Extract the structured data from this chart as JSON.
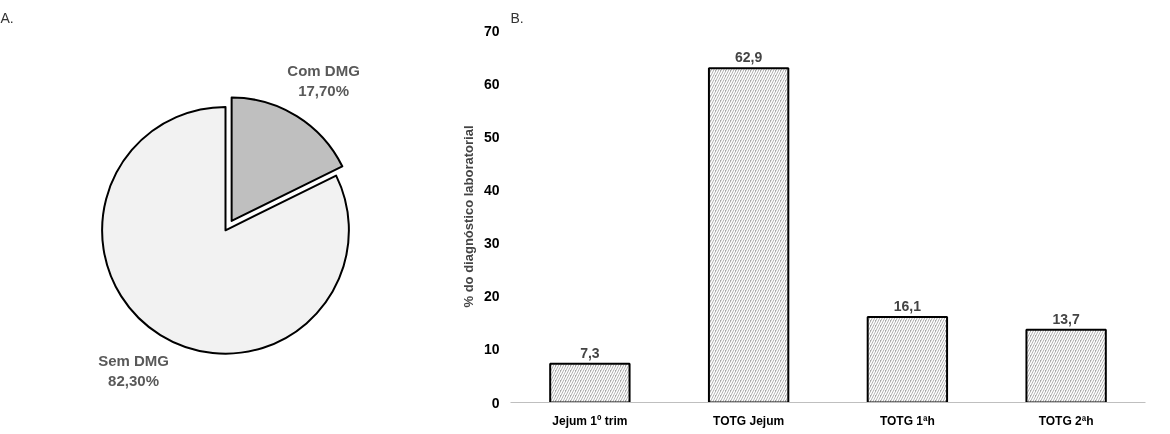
{
  "chart_data": [
    {
      "type": "pie",
      "title": "A.",
      "categories": [
        "Com DMG",
        "Sem DMG"
      ],
      "values": [
        17.7,
        82.3
      ],
      "colors": [
        "#bfbfbf",
        "#f2f2f2"
      ],
      "value_labels": [
        "17,70%",
        "82,30%"
      ]
    },
    {
      "type": "bar",
      "title": "B.",
      "ylabel": "% do diagnóstico laboratorial",
      "categories": [
        "Jejum 1º trim",
        "TOTG Jejum",
        "TOTG 1ªh",
        "TOTG 2ªh"
      ],
      "series": [
        {
          "color": "#a6a6a6",
          "values": [
            7.3,
            62.9,
            16.1,
            13.7
          ],
          "value_labels": [
            "7,3",
            "62,9",
            "16,1",
            "13,7"
          ]
        }
      ],
      "ylim": [
        0,
        70
      ],
      "yticks": [
        0,
        10,
        20,
        30,
        40,
        50,
        60,
        70
      ],
      "grid": false
    }
  ]
}
